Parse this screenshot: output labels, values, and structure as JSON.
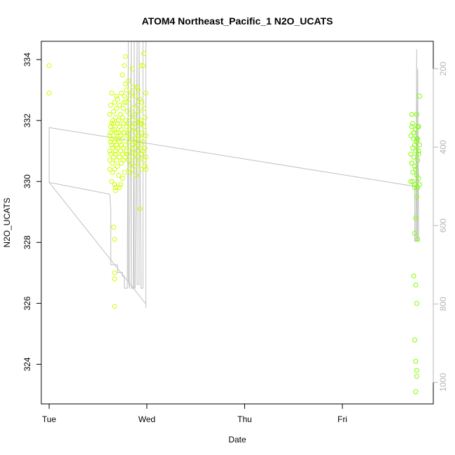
{
  "chart_data": {
    "type": "scatter",
    "title": "ATOM4 Northeast_Pacific_1 N2O_UCATS",
    "xlabel": "Date",
    "ylabel": "N2O_UCATS",
    "x_unit": "days since Tue 00:00",
    "xlim": [
      -0.08,
      3.93
    ],
    "ylim": [
      322.7,
      334.6
    ],
    "x_ticks": [
      {
        "value": 0,
        "label": "Tue"
      },
      {
        "value": 1,
        "label": "Wed"
      },
      {
        "value": 2,
        "label": "Thu"
      },
      {
        "value": 3,
        "label": "Fri"
      }
    ],
    "y_ticks": [
      324,
      326,
      328,
      330,
      332,
      334
    ],
    "y2_ticks": [
      200,
      400,
      600,
      800,
      1000
    ],
    "y2lim_top_to_bottom": [
      130,
      1055
    ],
    "grid": false,
    "colors": {
      "points_early": "#ccff00",
      "points_late": "#7fff00",
      "secondary_line": "#c0c0c0",
      "axis": "#000000",
      "right_axis": "#b5b5b5"
    },
    "series": [
      {
        "kind": "points",
        "color": "#ccff00",
        "x": [
          0.0,
          0.0,
          0.62,
          0.62,
          0.62,
          0.62,
          0.62,
          0.63,
          0.63,
          0.63,
          0.63,
          0.63,
          0.64,
          0.64,
          0.64,
          0.64,
          0.64,
          0.65,
          0.65,
          0.65,
          0.65,
          0.65,
          0.66,
          0.66,
          0.66,
          0.66,
          0.66,
          0.67,
          0.67,
          0.67,
          0.67,
          0.67,
          0.68,
          0.68,
          0.68,
          0.68,
          0.68,
          0.69,
          0.69,
          0.69,
          0.69,
          0.69,
          0.7,
          0.7,
          0.7,
          0.7,
          0.71,
          0.71,
          0.71,
          0.71,
          0.72,
          0.72,
          0.72,
          0.72,
          0.73,
          0.73,
          0.73,
          0.73,
          0.74,
          0.74,
          0.74,
          0.74,
          0.75,
          0.75,
          0.75,
          0.75,
          0.76,
          0.76,
          0.76,
          0.76,
          0.77,
          0.77,
          0.77,
          0.77,
          0.78,
          0.78,
          0.78,
          0.78,
          0.79,
          0.79,
          0.79,
          0.79,
          0.8,
          0.8,
          0.8,
          0.81,
          0.81,
          0.81,
          0.82,
          0.82,
          0.82,
          0.83,
          0.83,
          0.83,
          0.84,
          0.84,
          0.84,
          0.85,
          0.85,
          0.85,
          0.86,
          0.86,
          0.86,
          0.87,
          0.87,
          0.87,
          0.88,
          0.88,
          0.88,
          0.89,
          0.89,
          0.89,
          0.9,
          0.9,
          0.9,
          0.91,
          0.91,
          0.91,
          0.92,
          0.92,
          0.92,
          0.93,
          0.93,
          0.93,
          0.94,
          0.94,
          0.94,
          0.95,
          0.95,
          0.95,
          0.96,
          0.96,
          0.96,
          0.97,
          0.97,
          0.97,
          0.98,
          0.98,
          0.98,
          0.99,
          0.99,
          0.99,
          0.67,
          0.67,
          0.67,
          0.67,
          0.68,
          0.78,
          0.85,
          0.88,
          0.93,
          0.94,
          0.97,
          0.99,
          0.75,
          0.8,
          0.83,
          0.72,
          0.77,
          0.9,
          0.95
        ],
        "y": [
          333.8,
          332.9,
          331.5,
          331.0,
          330.7,
          330.4,
          332.2,
          331.8,
          331.3,
          330.9,
          331.6,
          332.5,
          331.2,
          330.0,
          331.9,
          332.9,
          331.4,
          331.7,
          330.6,
          332.0,
          331.1,
          330.3,
          331.5,
          332.3,
          330.8,
          331.9,
          328.5,
          331.3,
          332.6,
          330.4,
          328.1,
          331.7,
          331.0,
          332.1,
          330.9,
          329.8,
          331.4,
          331.6,
          332.8,
          330.7,
          331.2,
          332.4,
          331.9,
          330.5,
          331.1,
          332.7,
          331.4,
          330.2,
          332.0,
          331.6,
          331.8,
          330.8,
          332.5,
          331.3,
          331.0,
          329.9,
          332.2,
          331.5,
          331.7,
          330.6,
          332.9,
          331.2,
          331.4,
          332.1,
          330.9,
          333.5,
          331.9,
          330.7,
          332.4,
          331.1,
          331.6,
          332.8,
          330.3,
          333.8,
          331.2,
          332.0,
          330.8,
          333.2,
          331.8,
          332.6,
          331.0,
          333.0,
          331.5,
          332.3,
          330.9,
          331.9,
          333.3,
          330.7,
          331.3,
          332.7,
          330.4,
          331.7,
          332.1,
          331.0,
          331.4,
          332.9,
          330.6,
          331.8,
          332.4,
          331.1,
          331.2,
          333.1,
          330.8,
          331.9,
          332.2,
          330.5,
          331.6,
          332.8,
          330.9,
          331.3,
          332.0,
          330.2,
          331.7,
          332.5,
          331.0,
          331.2,
          333.0,
          330.6,
          331.5,
          332.3,
          330.8,
          331.9,
          332.7,
          331.1,
          331.4,
          332.0,
          330.4,
          331.6,
          332.6,
          330.9,
          331.3,
          333.8,
          331.0,
          331.8,
          332.4,
          330.7,
          331.1,
          332.1,
          330.5,
          331.5,
          332.9,
          330.8,
          327.0,
          325.9,
          326.8,
          329.9,
          329.7,
          334.1,
          333.7,
          331.4,
          329.1,
          333.8,
          334.2,
          330.4,
          330.1,
          331.6,
          330.3,
          329.8,
          332.6,
          333.1,
          331.9
        ]
      },
      {
        "kind": "points",
        "color": "#7fff00",
        "x": [
          3.7,
          3.7,
          3.7,
          3.71,
          3.71,
          3.71,
          3.72,
          3.72,
          3.72,
          3.73,
          3.73,
          3.73,
          3.74,
          3.74,
          3.74,
          3.75,
          3.75,
          3.75,
          3.76,
          3.76,
          3.76,
          3.77,
          3.77,
          3.77,
          3.78,
          3.78,
          3.78,
          3.79,
          3.79,
          3.79,
          3.71,
          3.72,
          3.73,
          3.74,
          3.75,
          3.76,
          3.73,
          3.75,
          3.76,
          3.74,
          3.77,
          3.75,
          3.76,
          3.76,
          3.75,
          3.74,
          3.77,
          3.76,
          3.78
        ],
        "y": [
          330.9,
          331.5,
          330.0,
          331.8,
          332.2,
          330.6,
          331.1,
          330.3,
          331.9,
          331.4,
          330.8,
          331.6,
          330.5,
          331.2,
          329.9,
          331.0,
          330.4,
          331.7,
          330.2,
          332.2,
          331.3,
          329.8,
          330.7,
          331.4,
          330.1,
          330.9,
          331.8,
          329.9,
          331.2,
          332.8,
          330.6,
          330.0,
          331.6,
          329.8,
          328.8,
          329.5,
          326.9,
          326.6,
          326.0,
          324.8,
          328.1,
          324.1,
          323.8,
          323.6,
          323.1,
          328.3,
          331.8,
          331.4,
          331.0
        ]
      }
    ],
    "secondary_line": {
      "color": "#c0c0c0",
      "axis": "right",
      "note": "pressure trace drawn against right axis",
      "x": [
        0.0,
        0.0,
        0.62,
        0.63,
        0.63,
        0.7,
        0.7,
        0.75,
        0.75,
        0.77,
        0.77,
        0.79,
        0.8,
        0.81,
        0.81,
        0.82,
        0.84,
        0.84,
        0.86,
        0.87,
        0.87,
        0.88,
        0.9,
        0.9,
        0.92,
        0.92,
        0.94,
        0.94,
        0.96,
        0.96,
        0.99,
        0.99,
        0.99,
        0.0,
        0.0,
        3.74,
        3.74,
        3.75,
        3.76,
        3.76,
        3.76,
        3.77,
        3.77,
        3.78
      ],
      "y": [
        350,
        490,
        520,
        560,
        700,
        700,
        720,
        720,
        730,
        730,
        760,
        760,
        760,
        100,
        730,
        760,
        100,
        760,
        760,
        100,
        760,
        760,
        100,
        750,
        750,
        100,
        720,
        760,
        760,
        100,
        100,
        810,
        800,
        490,
        350,
        500,
        640,
        640,
        150,
        640,
        640,
        640,
        200,
        640
      ]
    }
  }
}
